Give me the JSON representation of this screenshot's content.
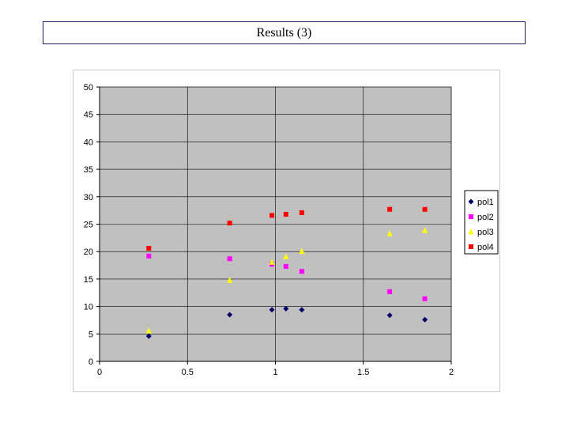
{
  "title": "Results (3)",
  "chart_data": {
    "type": "scatter",
    "title": "",
    "xlabel": "",
    "ylabel": "",
    "xlim": [
      0,
      2
    ],
    "ylim": [
      0,
      50
    ],
    "x_ticks": [
      0,
      0.5,
      1,
      1.5,
      2
    ],
    "x_tick_labels": [
      "0",
      "0.5",
      "1",
      "1.5",
      "2"
    ],
    "y_ticks": [
      0,
      5,
      10,
      15,
      20,
      25,
      30,
      35,
      40,
      45,
      50
    ],
    "y_tick_labels": [
      "0",
      "5",
      "10",
      "15",
      "20",
      "25",
      "30",
      "35",
      "40",
      "45",
      "50"
    ],
    "grid": true,
    "plot_background": "#c0c0c0",
    "legend_position": "right",
    "series": [
      {
        "name": "pol1",
        "marker": "diamond",
        "color": "#000066",
        "x": [
          0.28,
          0.74,
          0.98,
          1.06,
          1.15,
          1.65,
          1.85
        ],
        "y": [
          4.6,
          8.5,
          9.4,
          9.6,
          9.4,
          8.4,
          7.6
        ]
      },
      {
        "name": "pol2",
        "marker": "square",
        "color": "#ff00ff",
        "x": [
          0.28,
          0.74,
          0.98,
          1.06,
          1.15,
          1.65,
          1.85
        ],
        "y": [
          19.2,
          18.7,
          17.7,
          17.3,
          16.4,
          12.7,
          11.4
        ]
      },
      {
        "name": "pol3",
        "marker": "triangle",
        "color": "#ffff00",
        "x": [
          0.28,
          0.74,
          0.98,
          1.06,
          1.15,
          1.65,
          1.85
        ],
        "y": [
          5.6,
          14.8,
          18.1,
          19.1,
          20.1,
          23.3,
          23.9
        ]
      },
      {
        "name": "pol4",
        "marker": "square",
        "color": "#ff0000",
        "x": [
          0.28,
          0.74,
          0.98,
          1.06,
          1.15,
          1.65,
          1.85
        ],
        "y": [
          20.6,
          25.2,
          26.6,
          26.8,
          27.1,
          27.7,
          27.7
        ]
      }
    ]
  }
}
